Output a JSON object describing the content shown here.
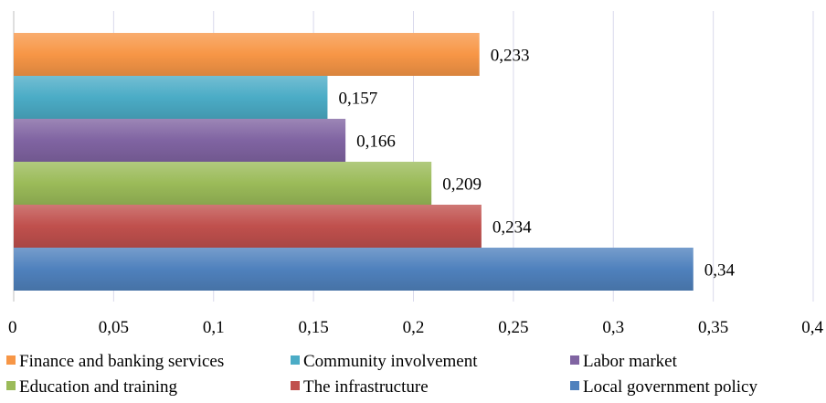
{
  "chart_data": {
    "type": "bar",
    "orientation": "horizontal",
    "categories": [
      "Finance and banking services",
      "Community involvement",
      "Labor market",
      "Education and training",
      "The infrastructure",
      "Local government policy"
    ],
    "values": [
      0.233,
      0.157,
      0.166,
      0.209,
      0.234,
      0.34
    ],
    "value_labels": [
      "0,233",
      "0,157",
      "0,166",
      "0,209",
      "0,234",
      "0,34"
    ],
    "colors": [
      "#f79646",
      "#4bacc6",
      "#8064a2",
      "#9bbb59",
      "#c0504d",
      "#4f81bd"
    ],
    "title": "",
    "xlabel": "",
    "ylabel": "",
    "xlim": [
      0,
      0.4
    ],
    "x_ticks": [
      0,
      0.05,
      0.1,
      0.15,
      0.2,
      0.25,
      0.3,
      0.35,
      0.4
    ],
    "x_tick_labels": [
      "0",
      "0,05",
      "0,1",
      "0,15",
      "0,2",
      "0,25",
      "0,3",
      "0,35",
      "0,4"
    ],
    "grid": "vertical",
    "legend_position": "bottom",
    "legend": [
      {
        "label": "Finance and banking services",
        "color": "#f79646"
      },
      {
        "label": "Community involvement",
        "color": "#4bacc6"
      },
      {
        "label": "Labor market",
        "color": "#8064a2"
      },
      {
        "label": "Education and training",
        "color": "#9bbb59"
      },
      {
        "label": "The infrastructure",
        "color": "#c0504d"
      },
      {
        "label": "Local government policy",
        "color": "#4f81bd"
      }
    ]
  }
}
